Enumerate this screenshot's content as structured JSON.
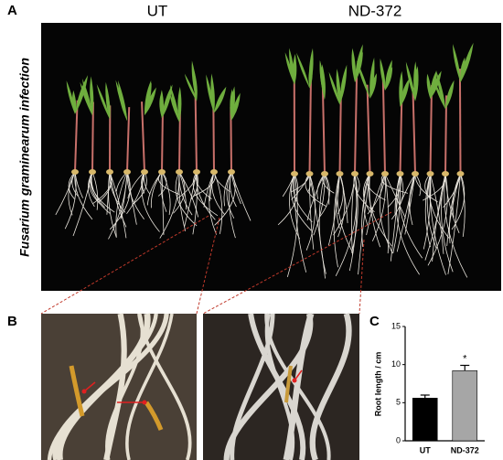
{
  "panel_labels": [
    "A",
    "B",
    "C"
  ],
  "photo_columns": [
    "UT",
    "ND-372"
  ],
  "side_label": "Fusarium graminearum infection",
  "chart_data": {
    "type": "bar",
    "ylabel": "Root length / cm",
    "categories": [
      "UT",
      "ND-372"
    ],
    "values": [
      5.6,
      9.2
    ],
    "errors": [
      0.4,
      0.7
    ],
    "colors": [
      "#000000",
      "#a6a6a6"
    ],
    "annotation": "*",
    "ylim": [
      0,
      15
    ],
    "yticks": [
      0,
      5,
      10,
      15
    ]
  }
}
